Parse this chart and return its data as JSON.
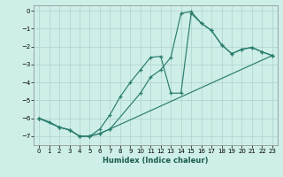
{
  "xlabel": "Humidex (Indice chaleur)",
  "xlim": [
    -0.5,
    23.5
  ],
  "ylim": [
    -7.5,
    0.3
  ],
  "yticks": [
    0,
    -1,
    -2,
    -3,
    -4,
    -5,
    -6,
    -7
  ],
  "xticks": [
    0,
    1,
    2,
    3,
    4,
    5,
    6,
    7,
    8,
    9,
    10,
    11,
    12,
    13,
    14,
    15,
    16,
    17,
    18,
    19,
    20,
    21,
    22,
    23
  ],
  "line_color": "#2a7d6e",
  "bg_color": "#ceeee8",
  "grid_color": "#aed4cc",
  "line1_x": [
    0,
    1,
    2,
    3,
    4,
    5,
    6,
    7,
    8,
    9,
    10,
    11,
    12,
    13,
    14,
    15,
    16,
    17,
    18,
    19,
    20,
    21,
    22,
    23
  ],
  "line1_y": [
    -6.0,
    -6.2,
    -6.5,
    -6.65,
    -7.0,
    -7.0,
    -6.6,
    -5.8,
    -4.8,
    -4.0,
    -3.3,
    -2.6,
    -2.55,
    -4.6,
    -4.6,
    -0.15,
    -0.7,
    -1.1,
    -1.9,
    -2.4,
    -2.15,
    -2.05,
    -2.3,
    -2.5
  ],
  "line2_x": [
    0,
    2,
    3,
    4,
    5,
    6,
    7,
    10,
    11,
    12,
    13,
    14,
    15,
    16,
    17,
    18,
    19,
    20,
    21,
    22,
    23
  ],
  "line2_y": [
    -6.0,
    -6.5,
    -6.65,
    -7.0,
    -7.0,
    -6.85,
    -6.6,
    -4.6,
    -3.7,
    -3.3,
    -2.6,
    -0.15,
    -0.05,
    -0.7,
    -1.1,
    -1.9,
    -2.4,
    -2.15,
    -2.05,
    -2.3,
    -2.5
  ],
  "line3_x": [
    0,
    2,
    3,
    4,
    5,
    6,
    7,
    23
  ],
  "line3_y": [
    -6.0,
    -6.5,
    -6.65,
    -7.0,
    -7.0,
    -6.85,
    -6.6,
    -2.5
  ]
}
